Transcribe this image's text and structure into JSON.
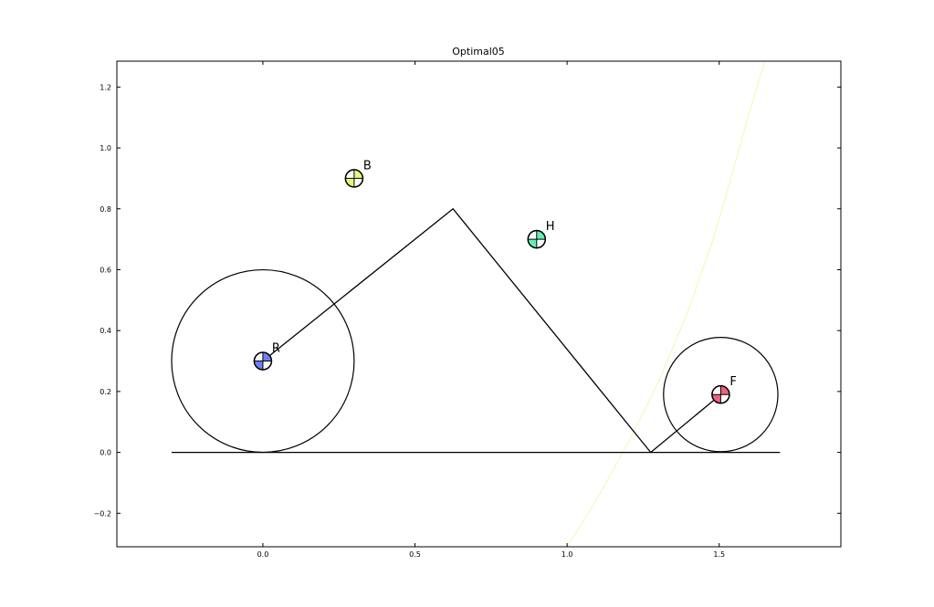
{
  "chart_data": {
    "type": "scatter",
    "title": "Optimal05",
    "xlabel": "",
    "ylabel": "",
    "xlim": [
      -0.48,
      1.9
    ],
    "ylim": [
      -0.31,
      1.285
    ],
    "grid": false,
    "x_ticks": [
      0.0,
      0.5,
      1.0,
      1.5
    ],
    "x_tick_labels": [
      "0.0",
      "0.5",
      "1.0",
      "1.5"
    ],
    "y_ticks": [
      -0.2,
      0.0,
      0.2,
      0.4,
      0.6,
      0.8,
      1.0,
      1.2
    ],
    "y_tick_labels": [
      "−0.2",
      "0.0",
      "0.2",
      "0.4",
      "0.6",
      "0.8",
      "1.0",
      "1.2"
    ],
    "markers": [
      {
        "label": "B",
        "x": 0.3,
        "y": 0.9,
        "color": "#e8f57a"
      },
      {
        "label": "H",
        "x": 0.9,
        "y": 0.7,
        "color": "#5ff0b0"
      },
      {
        "label": "R",
        "x": 0.0,
        "y": 0.3,
        "color": "#6f7ff5"
      },
      {
        "label": "F",
        "x": 1.505,
        "y": 0.19,
        "color": "#f0607a"
      }
    ],
    "wheels": [
      {
        "cx": 0.0,
        "cy": 0.3,
        "r": 0.3
      },
      {
        "cx": 1.505,
        "cy": 0.19,
        "r": 0.188
      }
    ],
    "ground": {
      "x": [
        -0.3,
        1.7
      ],
      "y": [
        0.0,
        0.0
      ]
    },
    "frame": {
      "x": [
        0.0,
        0.625,
        1.275,
        1.505
      ],
      "y": [
        0.3,
        0.8,
        0.0,
        0.19
      ]
    },
    "curve": {
      "color": "#f2f7b0",
      "x": [
        1.0,
        1.1,
        1.2,
        1.3,
        1.4,
        1.48,
        1.55,
        1.6,
        1.65
      ],
      "y": [
        -0.31,
        -0.15,
        0.03,
        0.23,
        0.47,
        0.7,
        0.94,
        1.12,
        1.285
      ]
    }
  }
}
